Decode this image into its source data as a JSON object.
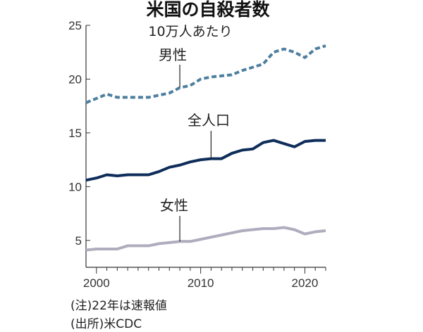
{
  "chart_data": {
    "type": "line",
    "title": "米国の自殺者数",
    "subtitle": "10万人あたり",
    "xlim": [
      1999,
      2022
    ],
    "ylim": [
      2.5,
      25
    ],
    "x_ticks": [
      "2000",
      "2010",
      "2020"
    ],
    "y_ticks": [
      "5",
      "10",
      "15",
      "20",
      "25"
    ],
    "x": [
      1999,
      2000,
      2001,
      2002,
      2003,
      2004,
      2005,
      2006,
      2007,
      2008,
      2009,
      2010,
      2011,
      2012,
      2013,
      2014,
      2015,
      2016,
      2017,
      2018,
      2019,
      2020,
      2021,
      2022
    ],
    "series": [
      {
        "name": "男性",
        "color": "#4e7f9e",
        "dash": true,
        "values": [
          17.8,
          18.2,
          18.6,
          18.3,
          18.3,
          18.3,
          18.3,
          18.5,
          18.7,
          19.2,
          19.4,
          20.0,
          20.2,
          20.3,
          20.4,
          20.8,
          21.1,
          21.4,
          22.5,
          22.8,
          22.5,
          22.0,
          22.8,
          23.1
        ]
      },
      {
        "name": "全人口",
        "color": "#0f2d5a",
        "dash": false,
        "values": [
          10.6,
          10.8,
          11.1,
          11.0,
          11.1,
          11.1,
          11.1,
          11.4,
          11.8,
          12.0,
          12.3,
          12.5,
          12.6,
          12.6,
          13.1,
          13.4,
          13.5,
          14.1,
          14.3,
          14.0,
          13.7,
          14.2,
          14.3,
          14.3
        ]
      },
      {
        "name": "女性",
        "color": "#b0acbe",
        "dash": false,
        "values": [
          4.1,
          4.2,
          4.2,
          4.2,
          4.5,
          4.5,
          4.5,
          4.7,
          4.8,
          4.9,
          4.9,
          5.1,
          5.3,
          5.5,
          5.7,
          5.9,
          6.0,
          6.1,
          6.1,
          6.2,
          6.0,
          5.6,
          5.8,
          5.9
        ]
      }
    ],
    "notes": [
      "(注)22年は速報値",
      "(出所)米CDC"
    ]
  }
}
